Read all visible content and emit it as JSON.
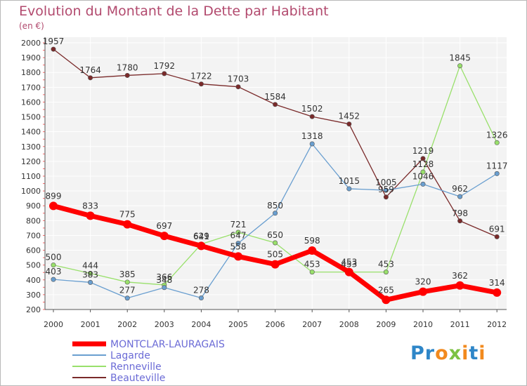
{
  "chart_data": {
    "type": "line",
    "title": "Evolution du Montant de la Dette par Habitant",
    "subtitle": "(en €)",
    "x": [
      "2000",
      "2001",
      "2002",
      "2003",
      "2004",
      "2005",
      "2006",
      "2007",
      "2008",
      "2009",
      "2010",
      "2011",
      "2012"
    ],
    "ylim": [
      200,
      2000
    ],
    "yticks": [
      200,
      300,
      400,
      500,
      600,
      700,
      800,
      900,
      1000,
      1100,
      1200,
      1300,
      1400,
      1500,
      1600,
      1700,
      1800,
      1900,
      2000
    ],
    "grid": true,
    "legend_position": "bottom-left",
    "series": [
      {
        "name": "MONTCLAR-LAURAGAIS",
        "color": "#ff0000",
        "values": [
          899,
          833,
          775,
          697,
          629,
          558,
          505,
          598,
          453,
          265,
          320,
          362,
          314
        ]
      },
      {
        "name": "Lagarde",
        "color": "#6a9fd0",
        "values": [
          403,
          383,
          277,
          348,
          278,
          647,
          850,
          1318,
          1015,
          1005,
          1046,
          962,
          1117
        ]
      },
      {
        "name": "Renneville",
        "color": "#99e06b",
        "values": [
          500,
          444,
          385,
          366,
          641,
          721,
          650,
          453,
          453,
          453,
          1128,
          1845,
          1326
        ]
      },
      {
        "name": "Beauteville",
        "color": "#7a2a2a",
        "values": [
          1957,
          1764,
          1780,
          1792,
          1722,
          1703,
          1584,
          1502,
          1452,
          959,
          1219,
          798,
          691
        ]
      }
    ]
  },
  "logo": {
    "text": "Proxiti",
    "letters": [
      "P",
      "r",
      "o",
      "x",
      "i",
      "t",
      "i"
    ],
    "colors": [
      "#2e86c8",
      "#2e86c8",
      "#f28a1e",
      "#7cc242",
      "#f28a1e",
      "#2e86c8",
      "#f28a1e"
    ]
  }
}
